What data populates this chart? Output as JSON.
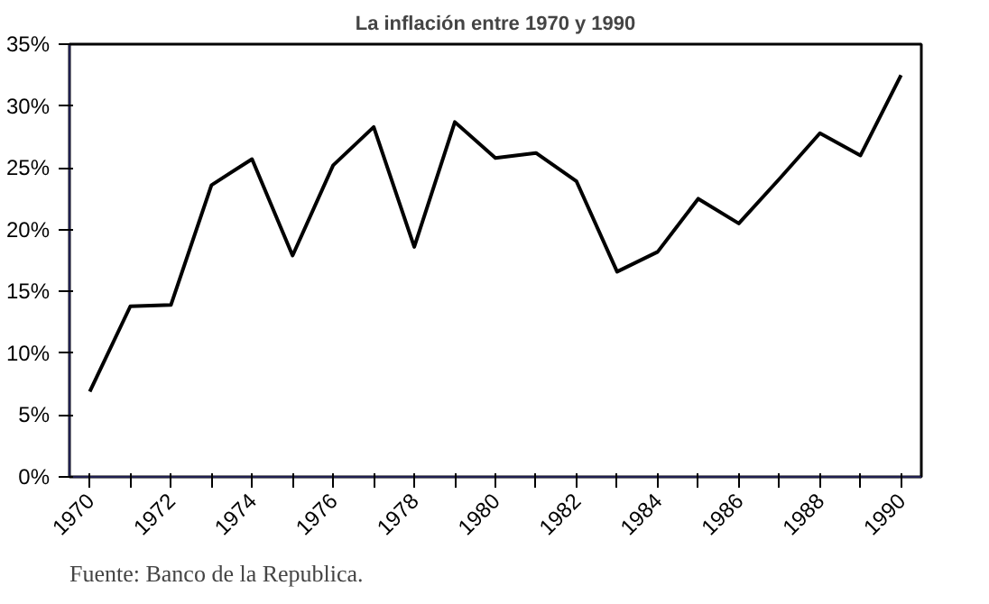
{
  "chart_data": {
    "type": "line",
    "title": "La inflación entre 1970 y 1990",
    "categories": [
      "1970",
      null,
      "1972",
      null,
      "1974",
      null,
      "1976",
      null,
      "1978",
      null,
      "1980",
      null,
      "1982",
      null,
      "1984",
      null,
      "1986",
      null,
      "1988",
      null,
      "1990"
    ],
    "series": [
      {
        "color": "#000000",
        "values": [
          6.9,
          13.8,
          13.9,
          23.6,
          25.7,
          17.9,
          25.2,
          28.3,
          18.6,
          28.7,
          25.8,
          26.2,
          23.9,
          16.6,
          18.2,
          22.5,
          20.5,
          24.1,
          27.8,
          26.0,
          32.5
        ]
      }
    ],
    "ylim": [
      0,
      35
    ],
    "yticks": [
      {
        "value": 0,
        "label": "0%"
      },
      {
        "value": 5,
        "label": "5%"
      },
      {
        "value": 10,
        "label": "10%"
      },
      {
        "value": 15,
        "label": "15%"
      },
      {
        "value": 20,
        "label": "20%"
      },
      {
        "value": 25,
        "label": "25%"
      },
      {
        "value": 30,
        "label": "30%"
      },
      {
        "value": 35,
        "label": "35%"
      }
    ],
    "grid": false,
    "marker": "none",
    "line_style": "solid",
    "annotations": [
      "Fuente: Banco de la Republica."
    ]
  }
}
